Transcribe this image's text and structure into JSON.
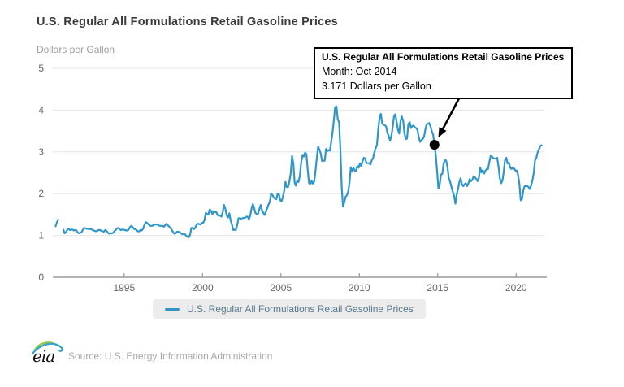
{
  "header": {
    "title": "U.S. Regular All Formulations Retail Gasoline Prices",
    "units_label": "Dollars per Gallon"
  },
  "tooltip": {
    "title": "U.S. Regular All Formulations Retail Gasoline Prices",
    "month_label": "Month: Oct 2014",
    "value_label": "3.171 Dollars per Gallon"
  },
  "legend": {
    "label": "U.S. Regular All Formulations Retail Gasoline Prices",
    "swatch_color": "#2e96c8"
  },
  "footer": {
    "logo_text": "eia",
    "source": "Source: U.S. Energy Information Administration"
  },
  "colors": {
    "line": "#2e96c8",
    "grid": "#e4e4e4",
    "axis": "#9a9a9a",
    "tick_label": "#666666",
    "annotation": "#000000",
    "legend_bg": "#ececec",
    "legend_text": "#57798e",
    "logo_green": "#94c83d",
    "logo_blue": "#36a5cd"
  },
  "chart_data": {
    "type": "line",
    "title": "U.S. Regular All Formulations Retail Gasoline Prices",
    "xlabel": "",
    "ylabel": "Dollars per Gallon",
    "xlim": [
      1990.45,
      2021.8
    ],
    "ylim": [
      0,
      5
    ],
    "xticks": [
      1995,
      2000,
      2005,
      2010,
      2015,
      2020
    ],
    "yticks": [
      0,
      1,
      2,
      3,
      4,
      5
    ],
    "grid": true,
    "legend_position": "bottom",
    "series": [
      {
        "name": "U.S. Regular All Formulations Retail Gasoline Prices",
        "color": "#2e96c8",
        "units": "Dollars per Gallon",
        "monthly_values_by_year": {
          "1990": [
            null,
            null,
            null,
            null,
            null,
            null,
            null,
            1.22,
            1.31,
            1.38,
            null,
            null
          ],
          "1991": [
            null,
            1.14,
            1.05,
            1.08,
            1.14,
            1.16,
            1.13,
            1.14,
            1.14,
            1.12,
            1.13,
            1.12
          ],
          "1992": [
            1.07,
            1.05,
            1.06,
            1.08,
            1.14,
            1.18,
            1.17,
            1.16,
            1.16,
            1.15,
            1.16,
            1.14
          ],
          "1993": [
            1.12,
            1.11,
            1.1,
            1.11,
            1.13,
            1.13,
            1.11,
            1.1,
            1.09,
            1.13,
            1.11,
            1.07
          ],
          "1994": [
            1.04,
            1.05,
            1.05,
            1.06,
            1.1,
            1.13,
            1.17,
            1.18,
            1.15,
            1.13,
            1.14,
            1.14
          ],
          "1995": [
            1.13,
            1.12,
            1.12,
            1.14,
            1.2,
            1.23,
            1.2,
            1.16,
            1.15,
            1.13,
            1.1,
            1.1
          ],
          "1996": [
            1.13,
            1.12,
            1.16,
            1.25,
            1.32,
            1.3,
            1.27,
            1.24,
            1.23,
            1.23,
            1.25,
            1.26
          ],
          "1997": [
            1.26,
            1.26,
            1.24,
            1.23,
            1.23,
            1.23,
            1.21,
            1.25,
            1.28,
            1.24,
            1.21,
            1.18
          ],
          "1998": [
            1.13,
            1.08,
            1.04,
            1.05,
            1.09,
            1.09,
            1.08,
            1.05,
            1.03,
            1.04,
            1.03,
            0.99
          ],
          "1999": [
            0.97,
            0.96,
            1.02,
            1.18,
            1.18,
            1.15,
            1.19,
            1.26,
            1.28,
            1.27,
            1.26,
            1.3
          ],
          "2000": [
            1.3,
            1.37,
            1.54,
            1.51,
            1.5,
            1.62,
            1.59,
            1.51,
            1.58,
            1.56,
            1.56,
            1.49
          ],
          "2001": [
            1.47,
            1.48,
            1.45,
            1.56,
            1.73,
            1.64,
            1.48,
            1.43,
            1.53,
            1.36,
            1.26,
            1.13
          ],
          "2002": [
            1.14,
            1.13,
            1.24,
            1.41,
            1.42,
            1.4,
            1.41,
            1.42,
            1.42,
            1.45,
            1.45,
            1.39
          ],
          "2003": [
            1.47,
            1.64,
            1.75,
            1.66,
            1.54,
            1.51,
            1.52,
            1.63,
            1.73,
            1.6,
            1.54,
            1.49
          ],
          "2004": [
            1.57,
            1.65,
            1.74,
            1.8,
            2.0,
            1.97,
            1.91,
            1.88,
            1.87,
            2.0,
            1.98,
            1.84
          ],
          "2005": [
            1.82,
            1.92,
            2.07,
            2.28,
            2.16,
            2.16,
            2.29,
            2.49,
            2.9,
            2.72,
            2.26,
            2.19
          ],
          "2006": [
            2.32,
            2.28,
            2.43,
            2.74,
            2.91,
            2.89,
            2.98,
            2.95,
            2.56,
            2.25,
            2.23,
            2.31
          ],
          "2007": [
            2.24,
            2.29,
            2.56,
            2.86,
            3.13,
            3.05,
            2.96,
            2.78,
            2.79,
            2.79,
            3.07,
            3.02
          ],
          "2008": [
            3.04,
            3.03,
            3.24,
            3.46,
            3.76,
            4.07,
            4.09,
            3.79,
            3.7,
            3.05,
            2.15,
            1.69
          ],
          "2009": [
            1.79,
            1.93,
            1.96,
            2.05,
            2.27,
            2.63,
            2.53,
            2.62,
            2.55,
            2.55,
            2.66,
            2.62
          ],
          "2010": [
            2.73,
            2.66,
            2.78,
            2.86,
            2.84,
            2.73,
            2.73,
            2.73,
            2.7,
            2.8,
            2.85,
            2.99
          ],
          "2011": [
            3.09,
            3.17,
            3.55,
            3.82,
            3.91,
            3.68,
            3.65,
            3.64,
            3.61,
            3.45,
            3.38,
            3.27
          ],
          "2012": [
            3.38,
            3.58,
            3.85,
            3.9,
            3.73,
            3.54,
            3.44,
            3.72,
            3.85,
            3.75,
            3.45,
            3.31
          ],
          "2013": [
            3.32,
            3.67,
            3.71,
            3.57,
            3.62,
            3.63,
            3.59,
            3.57,
            3.53,
            3.34,
            3.24,
            3.28
          ],
          "2014": [
            3.31,
            3.36,
            3.53,
            3.66,
            3.67,
            3.69,
            3.61,
            3.49,
            3.41,
            3.171,
            2.91,
            2.54
          ],
          "2015": [
            2.12,
            2.22,
            2.46,
            2.47,
            2.72,
            2.8,
            2.79,
            2.64,
            2.37,
            2.29,
            2.16,
            2.04
          ],
          "2016": [
            1.95,
            1.76,
            1.97,
            2.11,
            2.27,
            2.37,
            2.23,
            2.18,
            2.22,
            2.25,
            2.18,
            2.25
          ],
          "2017": [
            2.35,
            2.3,
            2.33,
            2.42,
            2.39,
            2.35,
            2.3,
            2.38,
            2.63,
            2.51,
            2.56,
            2.48
          ],
          "2018": [
            2.55,
            2.59,
            2.59,
            2.76,
            2.9,
            2.89,
            2.85,
            2.84,
            2.84,
            2.86,
            2.65,
            2.37
          ],
          "2019": [
            2.25,
            2.31,
            2.52,
            2.81,
            2.86,
            2.72,
            2.74,
            2.62,
            2.59,
            2.63,
            2.6,
            2.55
          ],
          "2020": [
            2.55,
            2.44,
            2.23,
            1.84,
            1.87,
            2.08,
            2.18,
            2.18,
            2.18,
            2.16,
            2.11,
            2.2
          ],
          "2021": [
            2.33,
            2.5,
            2.81,
            2.86,
            2.99,
            3.06,
            3.14,
            3.16,
            null,
            null,
            null,
            null
          ]
        }
      }
    ],
    "annotation": {
      "series": "U.S. Regular All Formulations Retail Gasoline Prices",
      "month": "Oct 2014",
      "x_year": 2014,
      "x_month": 10,
      "value": 3.171,
      "marker": "dot",
      "marker_color": "#000000"
    }
  }
}
